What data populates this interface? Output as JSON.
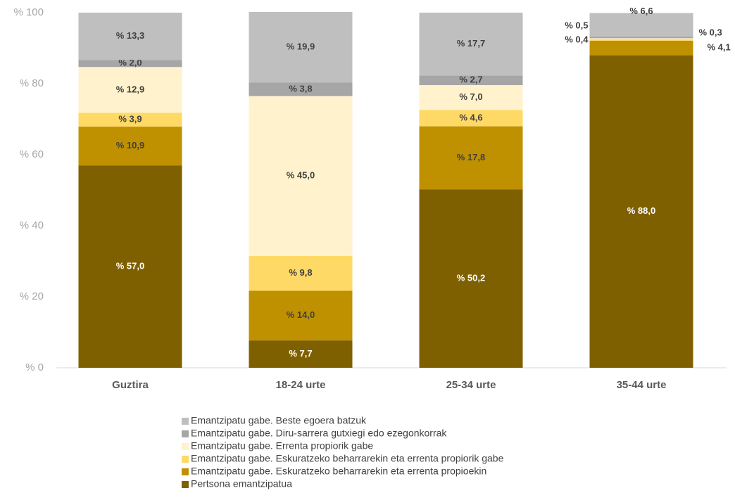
{
  "chart_data": {
    "type": "stacked_bar",
    "categories": [
      "Guztira",
      "18-24 urte",
      "25-34 urte",
      "35-44 urte"
    ],
    "series": [
      {
        "name": "Pertsona emantzipatua",
        "color": "#7f6000",
        "values": [
          57.0,
          7.7,
          50.2,
          88.0
        ],
        "value_labels": [
          "% 57,0",
          "% 7,7",
          "% 50,2",
          "% 88,0"
        ]
      },
      {
        "name": "Emantzipatu gabe. Eskuratzeko beharrarekin eta errenta propioekin",
        "color": "#bf9000",
        "values": [
          10.9,
          14.0,
          17.8,
          4.1
        ],
        "value_labels": [
          "% 10,9",
          "% 14,0",
          "% 17,8",
          "% 4,1"
        ]
      },
      {
        "name": "Emantzipatu gabe. Eskuratzeko beharrarekin eta errenta propiorik gabe",
        "color": "#ffd966",
        "values": [
          3.9,
          9.8,
          4.6,
          0.4
        ],
        "value_labels": [
          "% 3,9",
          "% 9,8",
          "% 4,6",
          "% 0,4"
        ]
      },
      {
        "name": "Emantzipatu gabe. Errenta propiorik gabe",
        "color": "#fff2cc",
        "values": [
          12.9,
          45.0,
          7.0,
          0.3
        ],
        "value_labels": [
          "% 12,9",
          "% 45,0",
          "% 7,0",
          "% 0,3"
        ]
      },
      {
        "name": "Emantzipatu gabe. Diru-sarrera gutxiegi edo ezegonkorrak",
        "color": "#a6a6a6",
        "values": [
          2.0,
          3.8,
          2.7,
          0.5
        ],
        "value_labels": [
          "% 2,0",
          "% 3,8",
          "% 2,7",
          "% 0,5"
        ]
      },
      {
        "name": "Emantzipatu gabe. Beste egoera batzuk",
        "color": "#bfbfbf",
        "values": [
          13.3,
          19.9,
          17.7,
          6.6
        ],
        "value_labels": [
          "% 13,3",
          "% 19,9",
          "% 17,7",
          "% 6,6"
        ]
      }
    ],
    "ylim": [
      0,
      100
    ],
    "yticks": [
      {
        "value": 0,
        "label": "% 0"
      },
      {
        "value": 20,
        "label": "% 20"
      },
      {
        "value": 40,
        "label": "% 40"
      },
      {
        "value": 60,
        "label": "% 60"
      },
      {
        "value": 80,
        "label": "% 80"
      },
      {
        "value": 100,
        "label": "% 100"
      }
    ]
  }
}
